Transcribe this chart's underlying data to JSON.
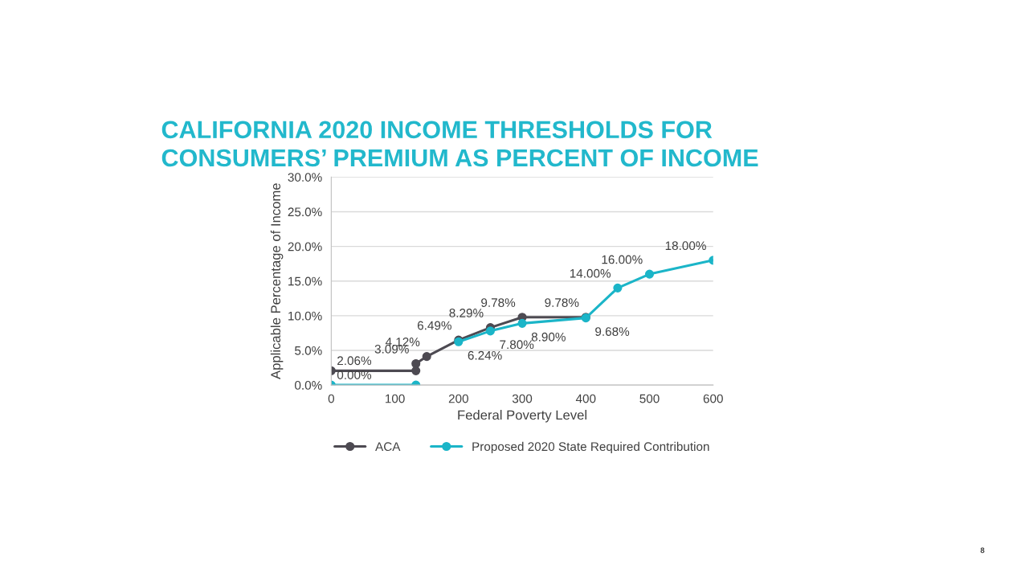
{
  "chart_data": {
    "type": "line",
    "title": "CALIFORNIA 2020 INCOME THRESHOLDS FOR\nCONSUMERS’ PREMIUM AS PERCENT OF INCOME",
    "xlabel": "Federal Poverty Level",
    "ylabel": "Applicable Percentage of Income",
    "series": [
      {
        "name": "ACA",
        "color": "#4d4a52",
        "x": [
          0,
          133,
          133,
          150,
          200,
          250,
          300,
          400
        ],
        "values": [
          2.06,
          2.06,
          3.09,
          4.12,
          6.49,
          8.29,
          9.78,
          9.78
        ],
        "value_labels": [
          "2.06%",
          null,
          "3.09%",
          "4.12%",
          "6.49%",
          "8.29%",
          "9.78%",
          "9.78%"
        ]
      },
      {
        "name": "Proposed 2020 State Required Contribution",
        "color": "#1bb5c8",
        "x": [
          200,
          250,
          300,
          400,
          450,
          500,
          600
        ],
        "values": [
          6.24,
          7.8,
          8.9,
          9.68,
          14.0,
          16.0,
          18.0
        ],
        "value_labels": [
          "6.24%",
          "7.80%",
          "8.90%",
          "9.68%",
          "14.00%",
          "16.00%",
          "18.00%"
        ]
      },
      {
        "color": "#1bb5c8",
        "x": [
          0,
          133
        ],
        "values": [
          0.0,
          0.0
        ],
        "value_labels": [
          "0.00%",
          null
        ]
      }
    ],
    "xlim": [
      0,
      600
    ],
    "xticks": [
      0,
      100,
      200,
      300,
      400,
      500,
      600
    ],
    "ylim": [
      0,
      30
    ],
    "yticks": [
      {
        "value": 0,
        "label": "0.0%"
      },
      {
        "value": 5,
        "label": "5.0%"
      },
      {
        "value": 10,
        "label": "10.0%"
      },
      {
        "value": 15,
        "label": "15.0%"
      },
      {
        "value": 20,
        "label": "20.0%"
      },
      {
        "value": 25,
        "label": "25.0%"
      },
      {
        "value": 30,
        "label": "30.0%"
      }
    ],
    "grid": "y",
    "legend": "bottom",
    "marker": "circle",
    "line_style": "solid",
    "annotations": [
      "8"
    ]
  }
}
